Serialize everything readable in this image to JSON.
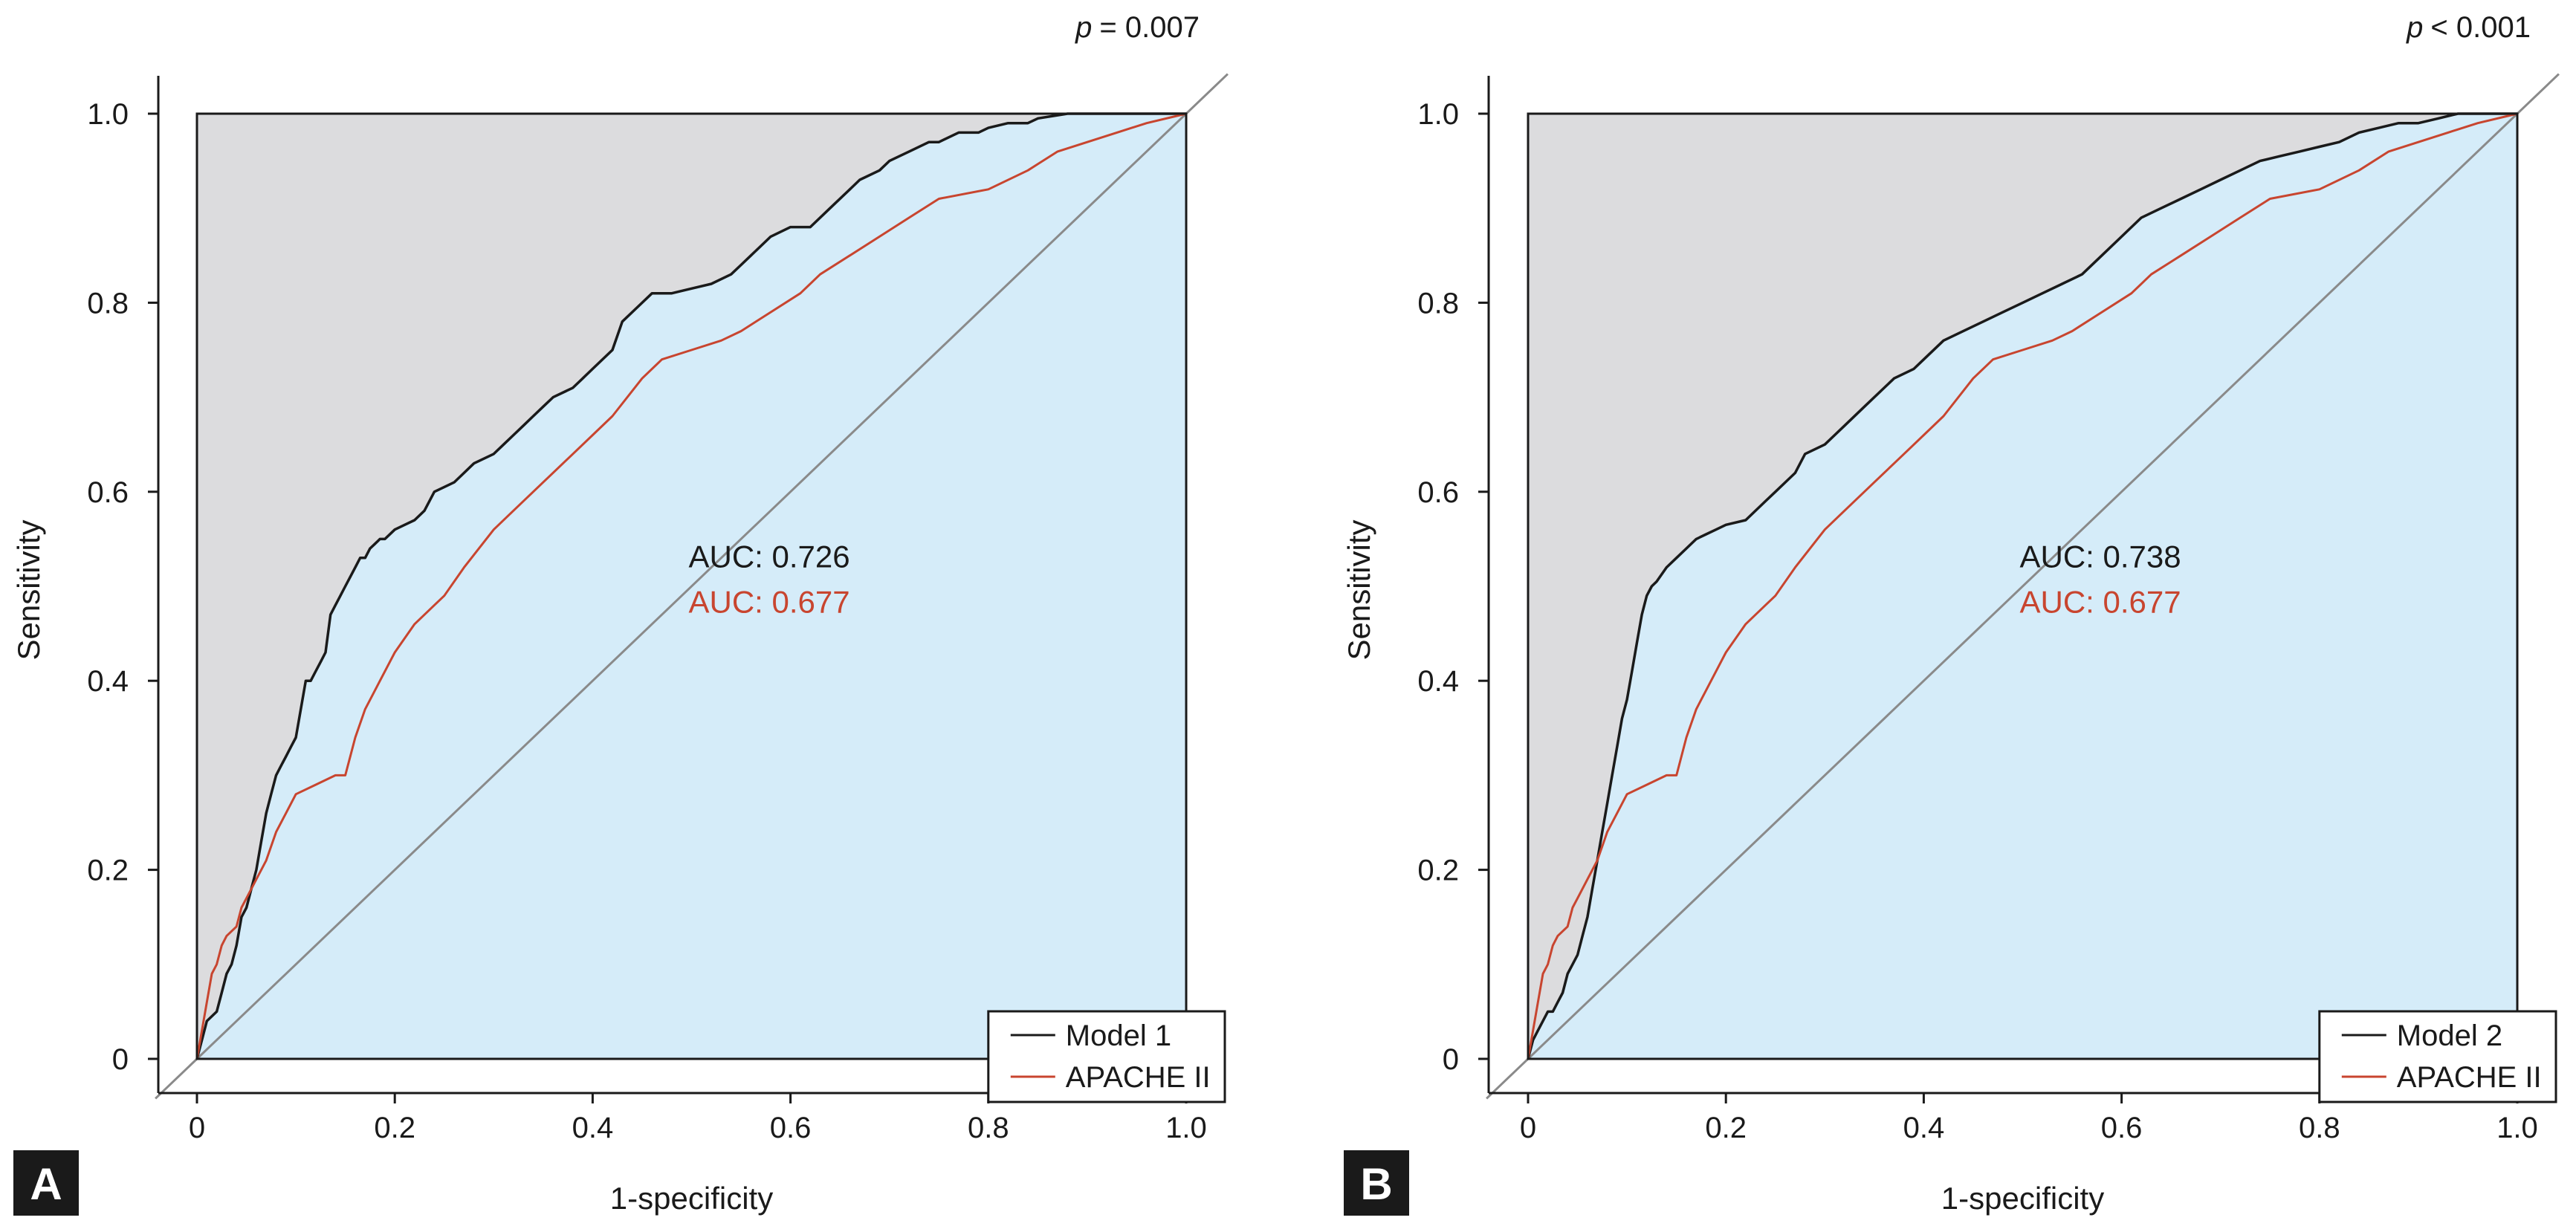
{
  "figure": {
    "panels": [
      {
        "letter": "A",
        "p_prefix": "p",
        "p_value": "= 0.007",
        "auc_main": "AUC: 0.726",
        "auc_ref": "AUC: 0.677",
        "legend": [
          "Model 1",
          "APACHE II"
        ]
      },
      {
        "letter": "B",
        "p_prefix": "p",
        "p_value": "< 0.001",
        "auc_main": "AUC: 0.738",
        "auc_ref": "AUC: 0.677",
        "legend": [
          "Model 2",
          "APACHE II"
        ]
      }
    ]
  },
  "colors": {
    "model": "#1a1a1a",
    "apache": "#c8452f",
    "area_above": "#dcdcde",
    "area_below": "#d5ecf9",
    "diagonal": "#8a8a8a",
    "letter_bg": "#1a1a1a"
  },
  "chart_data": [
    {
      "type": "line",
      "xlabel": "1-specificity",
      "ylabel": "Sensitivity",
      "xlim": [
        0,
        1
      ],
      "ylim": [
        0,
        1
      ],
      "x_ticks": [
        "0",
        "0.2",
        "0.4",
        "0.6",
        "0.8",
        "1.0"
      ],
      "y_ticks": [
        "0",
        "0.2",
        "0.4",
        "0.6",
        "0.8",
        "1.0"
      ],
      "reference_line": "diagonal",
      "legend_position": "bottom-right",
      "series": [
        {
          "name": "Model 1",
          "color": "#1a1a1a",
          "x": [
            0,
            0.005,
            0.01,
            0.02,
            0.025,
            0.03,
            0.035,
            0.04,
            0.045,
            0.05,
            0.055,
            0.06,
            0.065,
            0.07,
            0.075,
            0.08,
            0.085,
            0.09,
            0.095,
            0.1,
            0.11,
            0.115,
            0.12,
            0.125,
            0.13,
            0.135,
            0.14,
            0.145,
            0.15,
            0.155,
            0.16,
            0.165,
            0.17,
            0.175,
            0.18,
            0.185,
            0.19,
            0.2,
            0.21,
            0.22,
            0.23,
            0.24,
            0.25,
            0.26,
            0.27,
            0.28,
            0.3,
            0.31,
            0.32,
            0.33,
            0.34,
            0.35,
            0.36,
            0.38,
            0.39,
            0.4,
            0.42,
            0.43,
            0.44,
            0.45,
            0.46,
            0.48,
            0.5,
            0.52,
            0.54,
            0.55,
            0.56,
            0.57,
            0.58,
            0.6,
            0.62,
            0.64,
            0.66,
            0.67,
            0.69,
            0.7,
            0.72,
            0.74,
            0.75,
            0.77,
            0.79,
            0.8,
            0.82,
            0.84,
            0.85,
            0.88,
            0.9,
            0.92,
            0.94,
            0.96,
            0.98,
            1.0
          ],
          "y": [
            0,
            0.02,
            0.04,
            0.05,
            0.07,
            0.09,
            0.1,
            0.12,
            0.15,
            0.16,
            0.18,
            0.2,
            0.23,
            0.26,
            0.28,
            0.3,
            0.31,
            0.32,
            0.33,
            0.34,
            0.4,
            0.4,
            0.41,
            0.42,
            0.43,
            0.47,
            0.48,
            0.49,
            0.5,
            0.51,
            0.52,
            0.53,
            0.53,
            0.54,
            0.545,
            0.55,
            0.55,
            0.56,
            0.565,
            0.57,
            0.58,
            0.6,
            0.605,
            0.61,
            0.62,
            0.63,
            0.64,
            0.65,
            0.66,
            0.67,
            0.68,
            0.69,
            0.7,
            0.71,
            0.72,
            0.73,
            0.75,
            0.78,
            0.79,
            0.8,
            0.81,
            0.81,
            0.815,
            0.82,
            0.83,
            0.84,
            0.85,
            0.86,
            0.87,
            0.88,
            0.88,
            0.9,
            0.92,
            0.93,
            0.94,
            0.95,
            0.96,
            0.97,
            0.97,
            0.98,
            0.98,
            0.985,
            0.99,
            0.99,
            0.995,
            1.0,
            1.0,
            1.0,
            1.0,
            1.0,
            1.0,
            1.0
          ]
        },
        {
          "name": "APACHE II",
          "color": "#c8452f",
          "x": [
            0,
            0.005,
            0.01,
            0.015,
            0.02,
            0.025,
            0.03,
            0.04,
            0.045,
            0.05,
            0.06,
            0.07,
            0.08,
            0.09,
            0.1,
            0.12,
            0.14,
            0.15,
            0.16,
            0.17,
            0.18,
            0.2,
            0.22,
            0.24,
            0.25,
            0.27,
            0.3,
            0.32,
            0.35,
            0.38,
            0.4,
            0.42,
            0.45,
            0.47,
            0.5,
            0.53,
            0.55,
            0.58,
            0.61,
            0.63,
            0.66,
            0.69,
            0.72,
            0.75,
            0.8,
            0.84,
            0.87,
            0.9,
            0.93,
            0.96,
            1.0
          ],
          "y": [
            0,
            0.03,
            0.06,
            0.09,
            0.1,
            0.12,
            0.13,
            0.14,
            0.16,
            0.17,
            0.19,
            0.21,
            0.24,
            0.26,
            0.28,
            0.29,
            0.3,
            0.3,
            0.34,
            0.37,
            0.39,
            0.43,
            0.46,
            0.48,
            0.49,
            0.52,
            0.56,
            0.58,
            0.61,
            0.64,
            0.66,
            0.68,
            0.72,
            0.74,
            0.75,
            0.76,
            0.77,
            0.79,
            0.81,
            0.83,
            0.85,
            0.87,
            0.89,
            0.91,
            0.92,
            0.94,
            0.96,
            0.97,
            0.98,
            0.99,
            1.0
          ]
        }
      ]
    },
    {
      "type": "line",
      "xlabel": "1-specificity",
      "ylabel": "Sensitivity",
      "xlim": [
        0,
        1
      ],
      "ylim": [
        0,
        1
      ],
      "x_ticks": [
        "0",
        "0.2",
        "0.4",
        "0.6",
        "0.8",
        "1.0"
      ],
      "y_ticks": [
        "0",
        "0.2",
        "0.4",
        "0.6",
        "0.8",
        "1.0"
      ],
      "reference_line": "diagonal",
      "legend_position": "bottom-right",
      "series": [
        {
          "name": "Model 2",
          "color": "#1a1a1a",
          "x": [
            0,
            0.005,
            0.01,
            0.015,
            0.02,
            0.025,
            0.03,
            0.035,
            0.04,
            0.045,
            0.05,
            0.055,
            0.06,
            0.065,
            0.07,
            0.075,
            0.08,
            0.085,
            0.09,
            0.095,
            0.1,
            0.105,
            0.11,
            0.115,
            0.12,
            0.125,
            0.13,
            0.14,
            0.15,
            0.16,
            0.17,
            0.18,
            0.19,
            0.2,
            0.22,
            0.24,
            0.25,
            0.26,
            0.27,
            0.28,
            0.29,
            0.3,
            0.31,
            0.32,
            0.34,
            0.36,
            0.37,
            0.39,
            0.4,
            0.42,
            0.44,
            0.46,
            0.48,
            0.5,
            0.52,
            0.54,
            0.56,
            0.58,
            0.6,
            0.62,
            0.64,
            0.66,
            0.68,
            0.7,
            0.72,
            0.74,
            0.76,
            0.78,
            0.8,
            0.82,
            0.84,
            0.86,
            0.88,
            0.9,
            0.92,
            0.94,
            0.96,
            0.98,
            1.0
          ],
          "y": [
            0,
            0.02,
            0.03,
            0.04,
            0.05,
            0.05,
            0.06,
            0.07,
            0.09,
            0.1,
            0.11,
            0.13,
            0.15,
            0.18,
            0.21,
            0.24,
            0.27,
            0.3,
            0.33,
            0.36,
            0.38,
            0.41,
            0.44,
            0.47,
            0.49,
            0.5,
            0.505,
            0.52,
            0.53,
            0.54,
            0.55,
            0.555,
            0.56,
            0.565,
            0.57,
            0.59,
            0.6,
            0.61,
            0.62,
            0.64,
            0.645,
            0.65,
            0.66,
            0.67,
            0.69,
            0.71,
            0.72,
            0.73,
            0.74,
            0.76,
            0.77,
            0.78,
            0.79,
            0.8,
            0.81,
            0.82,
            0.83,
            0.85,
            0.87,
            0.89,
            0.9,
            0.91,
            0.92,
            0.93,
            0.94,
            0.95,
            0.955,
            0.96,
            0.965,
            0.97,
            0.98,
            0.985,
            0.99,
            0.99,
            0.995,
            1.0,
            1.0,
            1.0,
            1.0
          ]
        },
        {
          "name": "APACHE II",
          "color": "#c8452f",
          "x": [
            0,
            0.005,
            0.01,
            0.015,
            0.02,
            0.025,
            0.03,
            0.04,
            0.045,
            0.05,
            0.06,
            0.07,
            0.08,
            0.09,
            0.1,
            0.12,
            0.14,
            0.15,
            0.16,
            0.17,
            0.18,
            0.2,
            0.22,
            0.24,
            0.25,
            0.27,
            0.3,
            0.32,
            0.35,
            0.38,
            0.4,
            0.42,
            0.45,
            0.47,
            0.5,
            0.53,
            0.55,
            0.58,
            0.61,
            0.63,
            0.66,
            0.69,
            0.72,
            0.75,
            0.8,
            0.84,
            0.87,
            0.9,
            0.93,
            0.96,
            1.0
          ],
          "y": [
            0,
            0.03,
            0.06,
            0.09,
            0.1,
            0.12,
            0.13,
            0.14,
            0.16,
            0.17,
            0.19,
            0.21,
            0.24,
            0.26,
            0.28,
            0.29,
            0.3,
            0.3,
            0.34,
            0.37,
            0.39,
            0.43,
            0.46,
            0.48,
            0.49,
            0.52,
            0.56,
            0.58,
            0.61,
            0.64,
            0.66,
            0.68,
            0.72,
            0.74,
            0.75,
            0.76,
            0.77,
            0.79,
            0.81,
            0.83,
            0.85,
            0.87,
            0.89,
            0.91,
            0.92,
            0.94,
            0.96,
            0.97,
            0.98,
            0.99,
            1.0
          ]
        }
      ]
    }
  ]
}
